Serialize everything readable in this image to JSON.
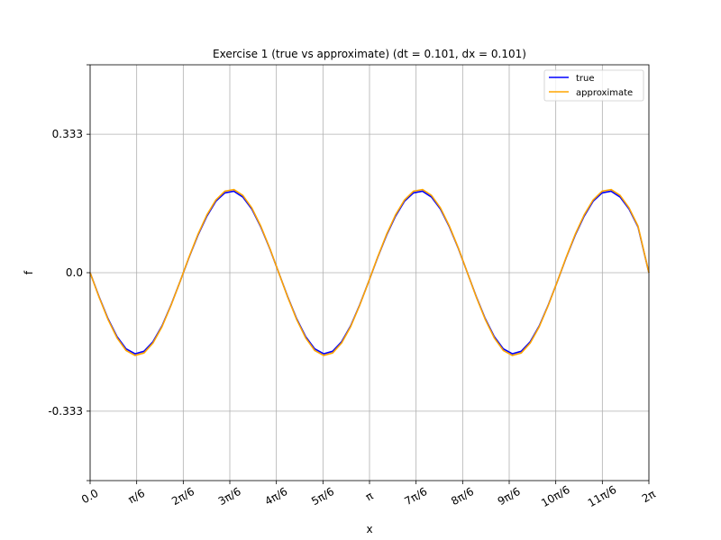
{
  "chart_data": {
    "type": "line",
    "title": "Exercise 1 (true vs approximate) (dt = 0.101, dx = 0.101)",
    "xlabel": "x",
    "ylabel": "f",
    "xlim": [
      0,
      6.283185
    ],
    "ylim": [
      -0.5,
      0.5
    ],
    "grid": true,
    "legend_position": "top-right",
    "x_ticks": [
      {
        "value": 0.0,
        "label": "0.0"
      },
      {
        "value": 0.523599,
        "label": "π/6"
      },
      {
        "value": 1.047198,
        "label": "2π/6"
      },
      {
        "value": 1.570796,
        "label": "3π/6"
      },
      {
        "value": 2.094395,
        "label": "4π/6"
      },
      {
        "value": 2.617994,
        "label": "5π/6"
      },
      {
        "value": 3.141593,
        "label": "π"
      },
      {
        "value": 3.665191,
        "label": "7π/6"
      },
      {
        "value": 4.18879,
        "label": "8π/6"
      },
      {
        "value": 4.712389,
        "label": "9π/6"
      },
      {
        "value": 5.235988,
        "label": "10π/6"
      },
      {
        "value": 5.759587,
        "label": "11π/6"
      },
      {
        "value": 6.283185,
        "label": "2π"
      }
    ],
    "y_ticks": [
      {
        "value": -0.5,
        "label": ""
      },
      {
        "value": -0.333,
        "label": "-0.333"
      },
      {
        "value": 0.0,
        "label": "0.0"
      },
      {
        "value": 0.333,
        "label": "0.333"
      },
      {
        "value": 0.5,
        "label": ""
      }
    ],
    "x": [
      0.0,
      0.101,
      0.202,
      0.303,
      0.404,
      0.505,
      0.606,
      0.707,
      0.808,
      0.909,
      1.01,
      1.111,
      1.212,
      1.313,
      1.414,
      1.515,
      1.616,
      1.717,
      1.818,
      1.919,
      2.02,
      2.121,
      2.222,
      2.323,
      2.424,
      2.525,
      2.626,
      2.727,
      2.828,
      2.929,
      3.03,
      3.131,
      3.232,
      3.333,
      3.434,
      3.535,
      3.636,
      3.737,
      3.838,
      3.939,
      4.04,
      4.141,
      4.242,
      4.343,
      4.444,
      4.545,
      4.646,
      4.747,
      4.848,
      4.949,
      5.05,
      5.151,
      5.252,
      5.353,
      5.454,
      5.555,
      5.656,
      5.757,
      5.858,
      5.959,
      6.06,
      6.161,
      6.283
    ],
    "series": [
      {
        "name": "true",
        "color": "#0000ff",
        "values": [
          0.0,
          -0.058,
          -0.111,
          -0.154,
          -0.183,
          -0.195,
          -0.189,
          -0.166,
          -0.128,
          -0.078,
          -0.022,
          0.036,
          0.09,
          0.136,
          0.172,
          0.192,
          0.196,
          0.182,
          0.153,
          0.11,
          0.058,
          0.0,
          -0.058,
          -0.111,
          -0.154,
          -0.183,
          -0.195,
          -0.189,
          -0.166,
          -0.128,
          -0.078,
          -0.022,
          0.036,
          0.09,
          0.136,
          0.172,
          0.192,
          0.196,
          0.182,
          0.153,
          0.11,
          0.058,
          0.0,
          -0.058,
          -0.111,
          -0.154,
          -0.183,
          -0.195,
          -0.189,
          -0.166,
          -0.128,
          -0.078,
          -0.022,
          0.036,
          0.09,
          0.136,
          0.172,
          0.192,
          0.196,
          0.182,
          0.153,
          0.11,
          0.0
        ]
      },
      {
        "name": "approximate",
        "color": "#ffa500",
        "values": [
          0.0,
          -0.059,
          -0.113,
          -0.157,
          -0.187,
          -0.199,
          -0.193,
          -0.169,
          -0.13,
          -0.079,
          -0.022,
          0.037,
          0.092,
          0.139,
          0.175,
          0.196,
          0.2,
          0.186,
          0.156,
          0.112,
          0.059,
          0.0,
          -0.059,
          -0.113,
          -0.157,
          -0.187,
          -0.199,
          -0.193,
          -0.169,
          -0.13,
          -0.079,
          -0.022,
          0.037,
          0.092,
          0.139,
          0.175,
          0.196,
          0.2,
          0.186,
          0.156,
          0.112,
          0.059,
          0.0,
          -0.059,
          -0.113,
          -0.157,
          -0.187,
          -0.199,
          -0.193,
          -0.169,
          -0.13,
          -0.079,
          -0.022,
          0.037,
          0.092,
          0.139,
          0.175,
          0.196,
          0.2,
          0.186,
          0.156,
          0.112,
          0.0
        ]
      }
    ]
  }
}
